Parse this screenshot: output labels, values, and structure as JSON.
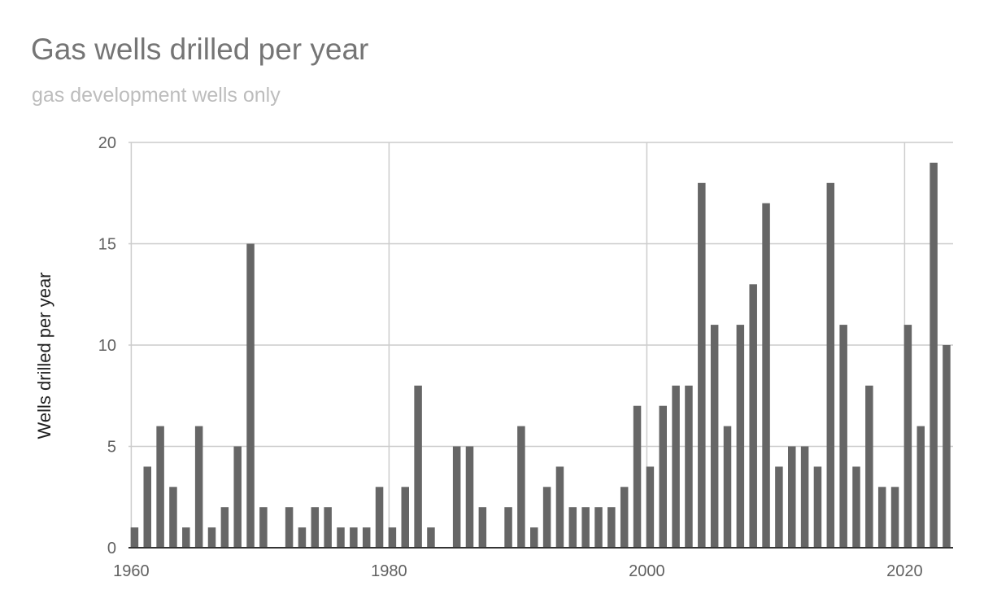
{
  "chart_data": {
    "type": "bar",
    "title": "Gas wells drilled per year",
    "subtitle": "gas development wells only",
    "xlabel": "",
    "ylabel": "Wells drilled per year",
    "xlim": [
      1960,
      2023
    ],
    "ylim": [
      0,
      20
    ],
    "x_ticks": [
      "1960",
      "1980",
      "2000",
      "2020"
    ],
    "y_ticks": [
      "0",
      "5",
      "10",
      "15",
      "20"
    ],
    "grid": true,
    "legend": "none",
    "bar_color": "#666666",
    "x": [
      1960,
      1961,
      1962,
      1963,
      1964,
      1965,
      1966,
      1967,
      1968,
      1969,
      1970,
      1971,
      1972,
      1973,
      1974,
      1975,
      1976,
      1977,
      1978,
      1979,
      1980,
      1981,
      1982,
      1983,
      1984,
      1985,
      1986,
      1987,
      1988,
      1989,
      1990,
      1991,
      1992,
      1993,
      1994,
      1995,
      1996,
      1997,
      1998,
      1999,
      2000,
      2001,
      2002,
      2003,
      2004,
      2005,
      2006,
      2007,
      2008,
      2009,
      2010,
      2011,
      2012,
      2013,
      2014,
      2015,
      2016,
      2017,
      2018,
      2019,
      2020,
      2021,
      2022,
      2023
    ],
    "values": [
      1,
      4,
      6,
      3,
      1,
      6,
      1,
      2,
      5,
      15,
      2,
      0,
      2,
      1,
      2,
      2,
      1,
      1,
      1,
      3,
      1,
      3,
      8,
      1,
      0,
      5,
      5,
      2,
      0,
      2,
      6,
      1,
      3,
      4,
      2,
      2,
      2,
      2,
      3,
      7,
      4,
      7,
      8,
      8,
      18,
      11,
      6,
      11,
      13,
      17,
      4,
      5,
      5,
      4,
      18,
      11,
      4,
      8,
      3,
      3,
      11,
      6,
      19,
      10
    ]
  }
}
